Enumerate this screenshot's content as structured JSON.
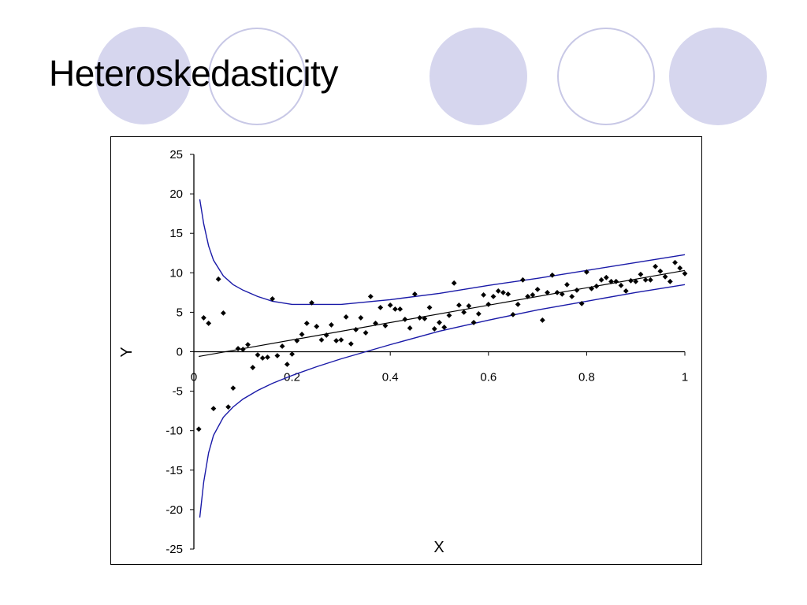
{
  "slide": {
    "title": "Heteroskedasticity",
    "decoration_colors": {
      "fill": "#d6d6ee",
      "ring": "#c8c8e6"
    }
  },
  "chart_data": {
    "type": "scatter",
    "title": "",
    "xlabel": "X",
    "ylabel": "Y",
    "xlim": [
      0,
      1
    ],
    "ylim": [
      -25,
      25
    ],
    "x_ticks": [
      "0",
      "0.2",
      "0.4",
      "0.6",
      "0.8",
      "1"
    ],
    "y_ticks": [
      "25",
      "20",
      "15",
      "10",
      "5",
      "0",
      "-5",
      "-10",
      "-15",
      "-20",
      "-25"
    ],
    "grid": false,
    "legend": "none",
    "colors": {
      "points": "#000000",
      "fit_line": "#000000",
      "bands": "#1a1aa8"
    },
    "points": [
      [
        0.01,
        -9.8
      ],
      [
        0.02,
        4.3
      ],
      [
        0.03,
        3.6
      ],
      [
        0.04,
        -7.2
      ],
      [
        0.05,
        9.2
      ],
      [
        0.06,
        4.9
      ],
      [
        0.07,
        -7.0
      ],
      [
        0.08,
        -4.6
      ],
      [
        0.09,
        0.4
      ],
      [
        0.1,
        0.3
      ],
      [
        0.11,
        0.9
      ],
      [
        0.12,
        -2.0
      ],
      [
        0.13,
        -0.4
      ],
      [
        0.14,
        -0.8
      ],
      [
        0.15,
        -0.7
      ],
      [
        0.16,
        6.7
      ],
      [
        0.17,
        -0.5
      ],
      [
        0.18,
        0.7
      ],
      [
        0.19,
        -1.6
      ],
      [
        0.2,
        -0.3
      ],
      [
        0.21,
        1.4
      ],
      [
        0.22,
        2.2
      ],
      [
        0.23,
        3.6
      ],
      [
        0.24,
        6.2
      ],
      [
        0.25,
        3.2
      ],
      [
        0.26,
        1.5
      ],
      [
        0.27,
        2.1
      ],
      [
        0.28,
        3.4
      ],
      [
        0.29,
        1.4
      ],
      [
        0.3,
        1.5
      ],
      [
        0.31,
        4.4
      ],
      [
        0.32,
        1.0
      ],
      [
        0.33,
        2.8
      ],
      [
        0.34,
        4.3
      ],
      [
        0.35,
        2.4
      ],
      [
        0.36,
        7.0
      ],
      [
        0.37,
        3.6
      ],
      [
        0.38,
        5.6
      ],
      [
        0.39,
        3.3
      ],
      [
        0.4,
        5.9
      ],
      [
        0.41,
        5.4
      ],
      [
        0.42,
        5.4
      ],
      [
        0.43,
        4.1
      ],
      [
        0.44,
        3.0
      ],
      [
        0.45,
        7.3
      ],
      [
        0.46,
        4.3
      ],
      [
        0.47,
        4.2
      ],
      [
        0.48,
        5.6
      ],
      [
        0.49,
        2.9
      ],
      [
        0.5,
        3.7
      ],
      [
        0.51,
        3.1
      ],
      [
        0.52,
        4.6
      ],
      [
        0.53,
        8.7
      ],
      [
        0.54,
        5.9
      ],
      [
        0.55,
        5.0
      ],
      [
        0.56,
        5.8
      ],
      [
        0.57,
        3.7
      ],
      [
        0.58,
        4.8
      ],
      [
        0.59,
        7.2
      ],
      [
        0.6,
        6.0
      ],
      [
        0.61,
        7.0
      ],
      [
        0.62,
        7.7
      ],
      [
        0.63,
        7.5
      ],
      [
        0.64,
        7.3
      ],
      [
        0.65,
        4.7
      ],
      [
        0.66,
        6.0
      ],
      [
        0.67,
        9.1
      ],
      [
        0.68,
        7.0
      ],
      [
        0.69,
        7.2
      ],
      [
        0.7,
        7.9
      ],
      [
        0.71,
        4.0
      ],
      [
        0.72,
        7.5
      ],
      [
        0.73,
        9.7
      ],
      [
        0.74,
        7.5
      ],
      [
        0.75,
        7.3
      ],
      [
        0.76,
        8.5
      ],
      [
        0.77,
        7.0
      ],
      [
        0.78,
        7.8
      ],
      [
        0.79,
        6.1
      ],
      [
        0.8,
        10.1
      ],
      [
        0.81,
        8.0
      ],
      [
        0.82,
        8.3
      ],
      [
        0.83,
        9.1
      ],
      [
        0.84,
        9.4
      ],
      [
        0.85,
        8.9
      ],
      [
        0.86,
        8.9
      ],
      [
        0.87,
        8.4
      ],
      [
        0.88,
        7.7
      ],
      [
        0.89,
        9.0
      ],
      [
        0.9,
        8.9
      ],
      [
        0.91,
        9.8
      ],
      [
        0.92,
        9.1
      ],
      [
        0.93,
        9.1
      ],
      [
        0.94,
        10.8
      ],
      [
        0.95,
        10.2
      ],
      [
        0.96,
        9.5
      ],
      [
        0.97,
        8.9
      ],
      [
        0.98,
        11.3
      ],
      [
        0.99,
        10.6
      ],
      [
        1.0,
        9.9
      ]
    ],
    "fit_line": {
      "x": [
        0.01,
        1.0
      ],
      "y": [
        -0.6,
        10.3
      ]
    },
    "upper_band": {
      "x": [
        0.012,
        0.02,
        0.03,
        0.04,
        0.06,
        0.08,
        0.1,
        0.13,
        0.16,
        0.2,
        0.25,
        0.3,
        0.35,
        0.4,
        0.5,
        0.6,
        0.7,
        0.8,
        0.9,
        1.0
      ],
      "y": [
        19.3,
        16.2,
        13.4,
        11.6,
        9.6,
        8.5,
        7.8,
        7.0,
        6.4,
        6.0,
        6.0,
        6.0,
        6.3,
        6.6,
        7.4,
        8.4,
        9.3,
        10.3,
        11.3,
        12.3
      ]
    },
    "lower_band": {
      "x": [
        0.012,
        0.02,
        0.03,
        0.04,
        0.06,
        0.08,
        0.1,
        0.13,
        0.16,
        0.2,
        0.25,
        0.3,
        0.35,
        0.4,
        0.5,
        0.6,
        0.7,
        0.8,
        0.9,
        1.0
      ],
      "y": [
        -21.0,
        -16.5,
        -12.8,
        -10.6,
        -8.3,
        -7.0,
        -6.0,
        -4.9,
        -4.0,
        -3.0,
        -1.9,
        -0.9,
        0.0,
        0.9,
        2.6,
        4.0,
        5.3,
        6.4,
        7.5,
        8.5
      ]
    }
  }
}
